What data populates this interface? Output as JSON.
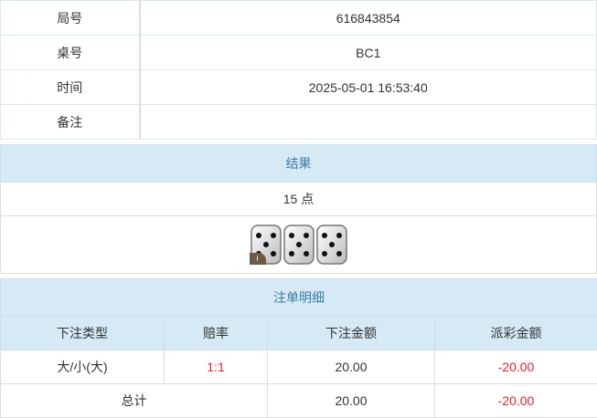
{
  "info": [
    {
      "label": "局号",
      "value": "616843854"
    },
    {
      "label": "桌号",
      "value": "BC1"
    },
    {
      "label": "时间",
      "value": "2025-05-01 16:53:40"
    },
    {
      "label": "备注",
      "value": ""
    }
  ],
  "result": {
    "title": "结果",
    "points": "15 点",
    "dice": [
      5,
      5,
      5
    ],
    "badge": "i"
  },
  "details": {
    "title": "注单明细",
    "columns": [
      "下注类型",
      "赔率",
      "下注金额",
      "派彩金额"
    ],
    "rows": [
      {
        "type": "大/小(大)",
        "odds": "1:1",
        "bet": "20.00",
        "payout": "-20.00"
      }
    ],
    "total": {
      "label": "总计",
      "bet": "20.00",
      "payout": "-20.00"
    }
  },
  "colors": {
    "header_bg": "#d5eaf5",
    "header_text": "#3a7ca5",
    "negative": "#e8202a"
  }
}
